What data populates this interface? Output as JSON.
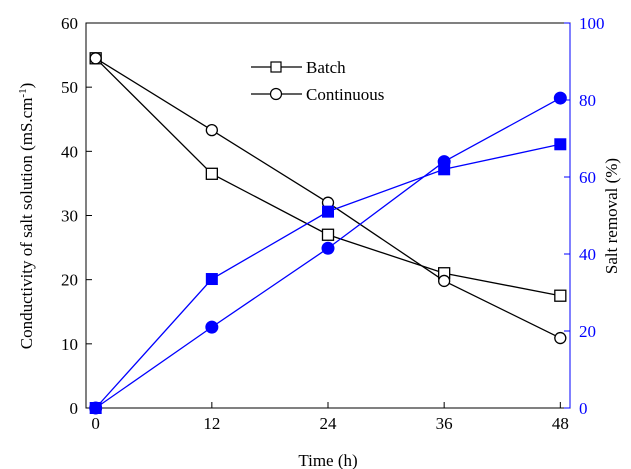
{
  "chart_data": {
    "type": "line",
    "xlabel": "Time (h)",
    "ylabel": "Conductivity of salt solution (mS.cm",
    "ylabel_sup": "-1",
    "ylabel_close": ")",
    "y2label": "Salt removal (%)",
    "x": [
      0,
      12,
      24,
      36,
      48
    ],
    "xticks": [
      "0",
      "12",
      "24",
      "36",
      "48"
    ],
    "xlim": [
      -1,
      49
    ],
    "ylim": [
      0,
      60
    ],
    "yticks": [
      "0",
      "10",
      "20",
      "30",
      "40",
      "50",
      "60"
    ],
    "y2lim": [
      0,
      100
    ],
    "y2ticks": [
      "0",
      "20",
      "40",
      "60",
      "80",
      "100"
    ],
    "legend_position": "top-center",
    "colors": {
      "left_axis": "#000000",
      "right_axis": "#0000ff"
    },
    "series": [
      {
        "name": "Batch",
        "axis": "left",
        "marker": "open-square",
        "color": "#000000",
        "values": [
          54.5,
          36.5,
          27.0,
          21.0,
          17.5
        ]
      },
      {
        "name": "Continuous",
        "axis": "left",
        "marker": "open-circle",
        "color": "#000000",
        "values": [
          54.5,
          43.3,
          32.0,
          19.8,
          10.9
        ]
      },
      {
        "axis": "right",
        "marker": "filled-square",
        "color": "#0000ff",
        "values": [
          0,
          33.5,
          51.0,
          62.0,
          68.5
        ]
      },
      {
        "axis": "right",
        "marker": "filled-circle",
        "color": "#0000ff",
        "values": [
          0,
          21.0,
          41.5,
          64.0,
          80.5
        ]
      }
    ]
  }
}
